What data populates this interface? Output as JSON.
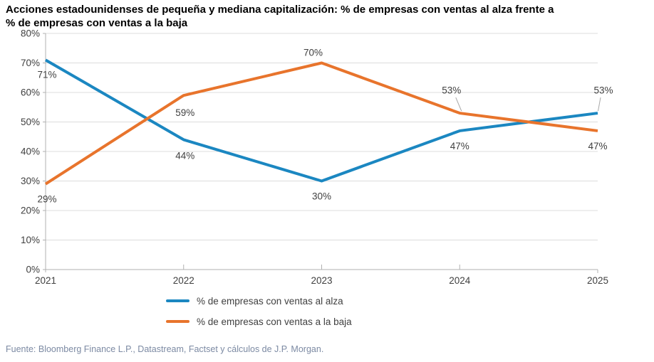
{
  "header": {
    "title_line1": "Acciones estadounidenses de pequeña y mediana capitalización: % de empresas con ventas al alza frente a",
    "title_line2": "% de empresas con ventas a la baja"
  },
  "chart_data": {
    "type": "line",
    "title": "Acciones estadounidenses de pequeña y mediana capitalización: % de empresas con ventas al alza frente a % de empresas con ventas a la baja",
    "categories": [
      "2021",
      "2022",
      "2023",
      "2024",
      "2025"
    ],
    "series": [
      {
        "name": "% de empresas con ventas al alza",
        "color": "#1b87c1",
        "values": [
          71,
          44,
          30,
          47,
          53
        ],
        "labels": [
          "71%",
          "44%",
          "30%",
          "47%",
          "53%"
        ]
      },
      {
        "name": "% de empresas con ventas a la baja",
        "color": "#e8742c",
        "values": [
          29,
          59,
          70,
          53,
          47
        ],
        "labels": [
          "29%",
          "59%",
          "70%",
          "53%",
          "47%"
        ]
      }
    ],
    "xlabel": "",
    "ylabel": "",
    "ylim": [
      0,
      80
    ],
    "ytick_step": 10,
    "ytick_labels": [
      "0%",
      "10%",
      "20%",
      "30%",
      "40%",
      "50%",
      "60%",
      "70%",
      "80%"
    ],
    "grid": "horizontal",
    "legend_position": "bottom-left",
    "data_labels": true
  },
  "footer": {
    "source": "Fuente: Bloomberg Finance L.P., Datastream, Factset y cálculos de J.P. Morgan."
  },
  "colors": {
    "grid": "#dcdcdc",
    "axis": "#b0b0b0",
    "tick_label": "#404040",
    "data_label": "#404040",
    "leader": "#a6a6a6",
    "source_text": "#7c8aa3",
    "title_text": "#000000"
  }
}
